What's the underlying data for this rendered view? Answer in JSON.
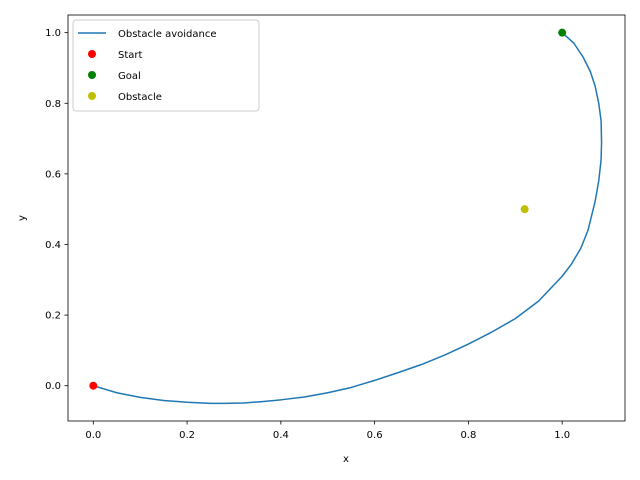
{
  "chart_data": {
    "type": "line",
    "title": "",
    "xlabel": "x",
    "ylabel": "y",
    "xlim": [
      -0.054,
      1.134
    ],
    "ylim": [
      -0.1,
      1.05
    ],
    "xticks": [
      0.0,
      0.2,
      0.4,
      0.6,
      0.8,
      1.0
    ],
    "yticks": [
      0.0,
      0.2,
      0.4,
      0.6,
      0.8,
      1.0
    ],
    "xtick_labels": [
      "0.0",
      "0.2",
      "0.4",
      "0.6",
      "0.8",
      "1.0"
    ],
    "ytick_labels": [
      "0.0",
      "0.2",
      "0.4",
      "0.6",
      "0.8",
      "1.0"
    ],
    "grid": false,
    "legend_position": "top-left",
    "series": [
      {
        "name": "Obstacle avoidance",
        "kind": "line",
        "color": "#1f77b4",
        "x": [
          0.0,
          0.05,
          0.1,
          0.15,
          0.2,
          0.25,
          0.28,
          0.32,
          0.36,
          0.4,
          0.45,
          0.5,
          0.55,
          0.6,
          0.65,
          0.7,
          0.75,
          0.8,
          0.85,
          0.9,
          0.95,
          1.0,
          1.02,
          1.04,
          1.055,
          1.07,
          1.078,
          1.083,
          1.084,
          1.083,
          1.078,
          1.07,
          1.06,
          1.045,
          1.025,
          1.0
        ],
        "y": [
          0.0,
          -0.02,
          -0.033,
          -0.042,
          -0.047,
          -0.05,
          -0.05,
          -0.049,
          -0.045,
          -0.04,
          -0.032,
          -0.02,
          -0.005,
          0.015,
          0.037,
          0.06,
          0.087,
          0.118,
          0.152,
          0.19,
          0.24,
          0.31,
          0.345,
          0.39,
          0.44,
          0.52,
          0.58,
          0.64,
          0.69,
          0.75,
          0.8,
          0.85,
          0.89,
          0.93,
          0.97,
          1.0
        ]
      },
      {
        "name": "Start",
        "kind": "scatter",
        "color": "#ff0000",
        "x": [
          0.0
        ],
        "y": [
          0.0
        ]
      },
      {
        "name": "Goal",
        "kind": "scatter",
        "color": "#008000",
        "x": [
          1.0
        ],
        "y": [
          1.0
        ]
      },
      {
        "name": "Obstacle",
        "kind": "scatter",
        "color": "#bfbf00",
        "x": [
          0.92
        ],
        "y": [
          0.5
        ]
      }
    ]
  }
}
